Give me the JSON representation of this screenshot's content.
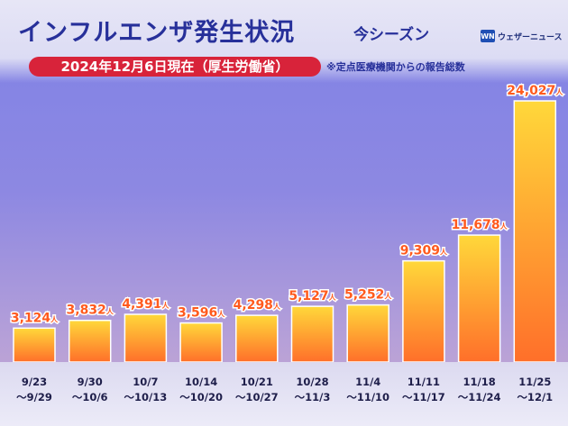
{
  "header": {
    "title": "インフルエンザ発生状況",
    "title_sub": "今シーズン",
    "logo_mark": "WN",
    "logo_text": "ウェザーニュース",
    "date_label": "2024年12月6日現在（厚生労働省）",
    "note": "※定点医療機関からの報告総数"
  },
  "colors": {
    "bar_top": "#ffd83a",
    "bar_bottom": "#ff6f2a",
    "value_text": "#ff5a1e",
    "title": "#27309a",
    "pill": "#d8233a"
  },
  "chart_data": {
    "type": "bar",
    "title": "インフルエンザ発生状況 今シーズン",
    "unit": "人",
    "categories": [
      [
        "9/23",
        "〜9/29"
      ],
      [
        "9/30",
        "〜10/6"
      ],
      [
        "10/7",
        "〜10/13"
      ],
      [
        "10/14",
        "〜10/20"
      ],
      [
        "10/21",
        "〜10/27"
      ],
      [
        "10/28",
        "〜11/3"
      ],
      [
        "11/4",
        "〜11/10"
      ],
      [
        "11/11",
        "〜11/17"
      ],
      [
        "11/18",
        "〜11/24"
      ],
      [
        "11/25",
        "〜12/1"
      ]
    ],
    "values": [
      3124,
      3832,
      4391,
      3596,
      4298,
      5127,
      5252,
      9309,
      11678,
      24027
    ],
    "value_labels": [
      "3,124",
      "3,832",
      "4,391",
      "3,596",
      "4,298",
      "5,127",
      "5,252",
      "9,309",
      "11,678",
      "24,027"
    ],
    "ylim": [
      0,
      24027
    ],
    "grid": false,
    "legend": "none"
  }
}
